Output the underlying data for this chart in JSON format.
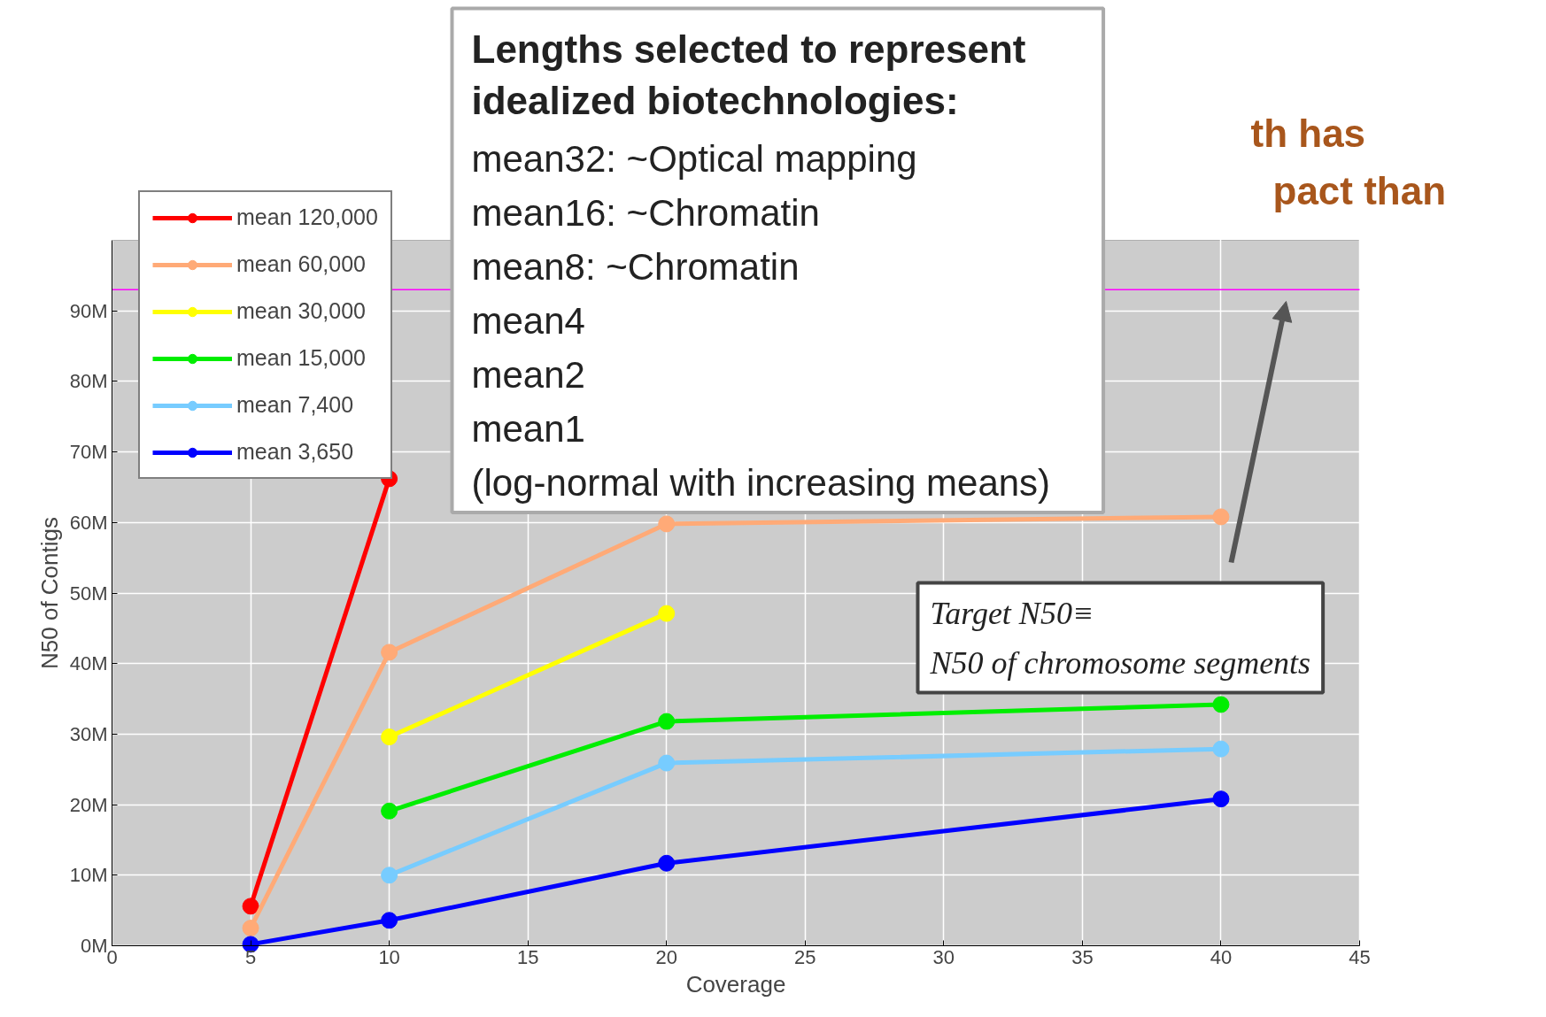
{
  "chart_data": {
    "type": "line",
    "xlabel": "Coverage",
    "ylabel": "N50 of Contigs",
    "x": [
      5,
      10,
      20,
      40
    ],
    "series": [
      {
        "name": "mean 120,000",
        "color": "#ff0000",
        "values": [
          5.6,
          66.2,
          null,
          null
        ]
      },
      {
        "name": "mean 60,000",
        "color": "#ffaa77",
        "values": [
          2.5,
          41.6,
          59.8,
          60.8
        ]
      },
      {
        "name": "mean 30,000",
        "color": "#ffff00",
        "values": [
          null,
          29.6,
          47.1,
          null
        ]
      },
      {
        "name": "mean 15,000",
        "color": "#00ee00",
        "values": [
          null,
          19.1,
          31.8,
          34.2
        ]
      },
      {
        "name": "mean 7,400",
        "color": "#77ccff",
        "values": [
          null,
          10.0,
          25.9,
          27.9
        ]
      },
      {
        "name": "mean 3,650",
        "color": "#0000ff",
        "values": [
          0.2,
          3.6,
          11.7,
          20.8
        ]
      }
    ],
    "xlim": [
      0,
      45
    ],
    "xticks": [
      0,
      5,
      10,
      15,
      20,
      25,
      30,
      35,
      40,
      45
    ],
    "ylim": [
      0,
      100
    ],
    "yticks": [
      {
        "value": 0,
        "label": "0M"
      },
      {
        "value": 10,
        "label": "10M"
      },
      {
        "value": 20,
        "label": "20M"
      },
      {
        "value": 30,
        "label": "30M"
      },
      {
        "value": 40,
        "label": "40M"
      },
      {
        "value": 50,
        "label": "50M"
      },
      {
        "value": 60,
        "label": "60M"
      },
      {
        "value": 70,
        "label": "70M"
      },
      {
        "value": 80,
        "label": "80M"
      },
      {
        "value": 90,
        "label": "90M"
      }
    ],
    "grid": true,
    "legend": "top left",
    "marker": "circle",
    "line_style": "solid",
    "ref_lines": [
      {
        "axis": "y",
        "value": 93,
        "color": "#ff00ff"
      }
    ],
    "annotations": [
      "Lengths selected to represent\nidealized biotechnologies:",
      "mean32: ~Optical mapping",
      "mean16: ~Chromatin",
      "mean8: ~Chromatin",
      "mean4",
      "mean2",
      "mean1",
      "(log-normal with increasing means)",
      "th has",
      "pact than",
      "Target N50≡\nN50 of chromosome segments"
    ]
  }
}
